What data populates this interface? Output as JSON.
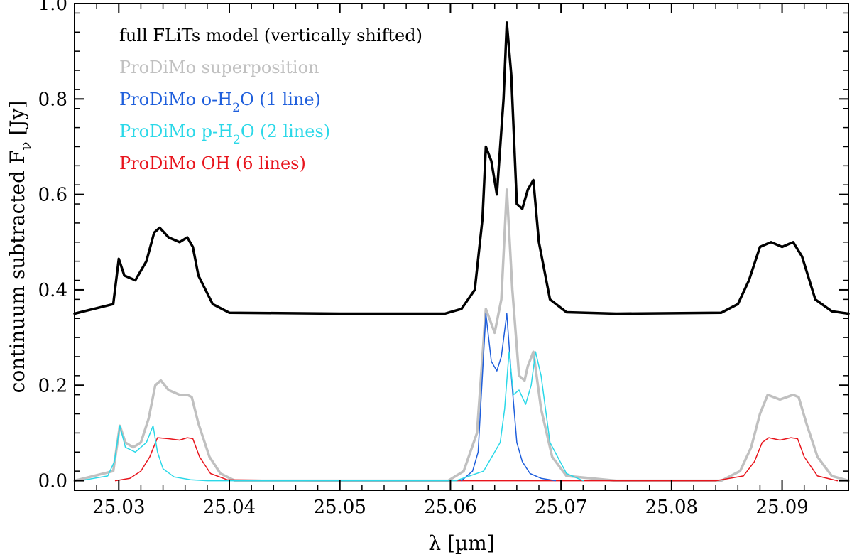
{
  "chart_data": {
    "type": "line",
    "title": "",
    "xlabel": "λ [µm]",
    "ylabel": "continuum subtracted  F",
    "ylabel_subscript": "ν",
    "ylabel_unit": " [Jy]",
    "xlim": [
      25.026,
      25.096
    ],
    "ylim": [
      -0.02,
      1.0
    ],
    "x_ticks": [
      25.03,
      25.04,
      25.05,
      25.06,
      25.07,
      25.08,
      25.09
    ],
    "x_tick_labels": [
      "25.03",
      "25.04",
      "25.05",
      "25.06",
      "25.07",
      "25.08",
      "25.09"
    ],
    "y_ticks": [
      0.0,
      0.2,
      0.4,
      0.6,
      0.8,
      1.0
    ],
    "y_tick_labels": [
      "0.0",
      "0.2",
      "0.4",
      "0.6",
      "0.8",
      "1.0"
    ],
    "grid": false,
    "legend_position": "top-left",
    "series": [
      {
        "name": "full FLiTs model (vertically shifted)",
        "legend_parts": [
          "full FLiTs model (vertically shifted)"
        ],
        "color": "#000000",
        "x": [
          25.026,
          25.0295,
          25.03,
          25.0305,
          25.0315,
          25.0325,
          25.0332,
          25.0337,
          25.0345,
          25.0355,
          25.0362,
          25.0367,
          25.0372,
          25.0385,
          25.04,
          25.05,
          25.0595,
          25.061,
          25.0622,
          25.0629,
          25.0632,
          25.0637,
          25.0642,
          25.0648,
          25.0651,
          25.0655,
          25.066,
          25.0665,
          25.067,
          25.0675,
          25.068,
          25.069,
          25.0705,
          25.075,
          25.0845,
          25.086,
          25.087,
          25.088,
          25.089,
          25.09,
          25.091,
          25.0918,
          25.093,
          25.0945,
          25.096
        ],
        "y": [
          0.35,
          0.37,
          0.465,
          0.43,
          0.42,
          0.46,
          0.52,
          0.53,
          0.51,
          0.5,
          0.51,
          0.49,
          0.43,
          0.37,
          0.352,
          0.35,
          0.35,
          0.36,
          0.4,
          0.55,
          0.7,
          0.67,
          0.6,
          0.8,
          0.96,
          0.85,
          0.58,
          0.57,
          0.61,
          0.63,
          0.5,
          0.38,
          0.353,
          0.35,
          0.352,
          0.37,
          0.42,
          0.49,
          0.5,
          0.49,
          0.5,
          0.47,
          0.38,
          0.355,
          0.35
        ],
        "stroke_width": 3.5
      },
      {
        "name": "ProDiMo superposition",
        "legend_parts": [
          "ProDiMo superposition"
        ],
        "color": "#c0c0c0",
        "x": [
          25.026,
          25.0295,
          25.0301,
          25.0306,
          25.0313,
          25.032,
          25.0327,
          25.0333,
          25.0338,
          25.0345,
          25.0355,
          25.0362,
          25.0366,
          25.0372,
          25.0382,
          25.0392,
          25.0405,
          25.05,
          25.0598,
          25.0612,
          25.0624,
          25.0632,
          25.064,
          25.0646,
          25.0651,
          25.0656,
          25.0662,
          25.0667,
          25.067,
          25.0675,
          25.0682,
          25.0692,
          25.0705,
          25.075,
          25.0845,
          25.0862,
          25.0872,
          25.088,
          25.0887,
          25.0898,
          25.091,
          25.0915,
          25.0922,
          25.0932,
          25.0945,
          25.096
        ],
        "y": [
          0.0,
          0.02,
          0.115,
          0.08,
          0.07,
          0.08,
          0.13,
          0.2,
          0.21,
          0.19,
          0.18,
          0.18,
          0.175,
          0.12,
          0.05,
          0.015,
          0.0,
          0.0,
          0.0,
          0.02,
          0.1,
          0.36,
          0.31,
          0.38,
          0.61,
          0.4,
          0.22,
          0.21,
          0.24,
          0.27,
          0.15,
          0.05,
          0.01,
          0.0,
          0.0,
          0.02,
          0.07,
          0.14,
          0.18,
          0.17,
          0.18,
          0.175,
          0.12,
          0.05,
          0.01,
          0.0
        ],
        "stroke_width": 3.5
      },
      {
        "name": "ProDiMo o-H2O (1 line)",
        "legend_parts": [
          "ProDiMo o-H",
          "2",
          "O (1 line)"
        ],
        "color": "#1f5fdc",
        "x": [
          25.061,
          25.062,
          25.0625,
          25.0632,
          25.0637,
          25.0642,
          25.0646,
          25.0651,
          25.0655,
          25.066,
          25.0665,
          25.0672,
          25.0682,
          25.0695
        ],
        "y": [
          0.0,
          0.02,
          0.06,
          0.35,
          0.25,
          0.23,
          0.26,
          0.35,
          0.22,
          0.08,
          0.04,
          0.015,
          0.005,
          0.0
        ],
        "stroke_width": 1.5
      },
      {
        "name": "ProDiMo p-H2O (2 lines)",
        "legend_parts": [
          "ProDiMo p-H",
          "2",
          "O (2 lines)"
        ],
        "color": "#2ad8e8",
        "x": [
          25.0265,
          25.029,
          25.0296,
          25.0301,
          25.0306,
          25.0315,
          25.0325,
          25.0331,
          25.0335,
          25.034,
          25.035,
          25.0365,
          25.038,
          25.0605,
          25.063,
          25.0645,
          25.0649,
          25.0653,
          25.0657,
          25.0662,
          25.0668,
          25.0673,
          25.0677,
          25.0682,
          25.069,
          25.0705,
          25.072
        ],
        "y": [
          0.0,
          0.01,
          0.04,
          0.115,
          0.07,
          0.06,
          0.08,
          0.115,
          0.06,
          0.025,
          0.008,
          0.002,
          0.0,
          0.0,
          0.02,
          0.08,
          0.15,
          0.27,
          0.18,
          0.19,
          0.16,
          0.2,
          0.27,
          0.22,
          0.08,
          0.015,
          0.0
        ],
        "stroke_width": 1.5
      },
      {
        "name": "ProDiMo OH (6 lines)",
        "legend_parts": [
          "ProDiMo OH (6 lines)"
        ],
        "color": "#e8141c",
        "x": [
          25.0297,
          25.031,
          25.032,
          25.0328,
          25.0335,
          25.0345,
          25.0355,
          25.0362,
          25.0367,
          25.0373,
          25.0383,
          25.0398,
          25.048,
          25.06,
          25.084,
          25.0865,
          25.0875,
          25.0882,
          25.0888,
          25.0898,
          25.0908,
          25.0914,
          25.092,
          25.0932,
          25.095
        ],
        "y": [
          0.0,
          0.005,
          0.02,
          0.05,
          0.09,
          0.088,
          0.085,
          0.09,
          0.088,
          0.05,
          0.015,
          0.002,
          0.0,
          0.0,
          0.0,
          0.01,
          0.04,
          0.08,
          0.09,
          0.085,
          0.09,
          0.088,
          0.05,
          0.01,
          0.0
        ],
        "stroke_width": 1.5
      }
    ]
  }
}
